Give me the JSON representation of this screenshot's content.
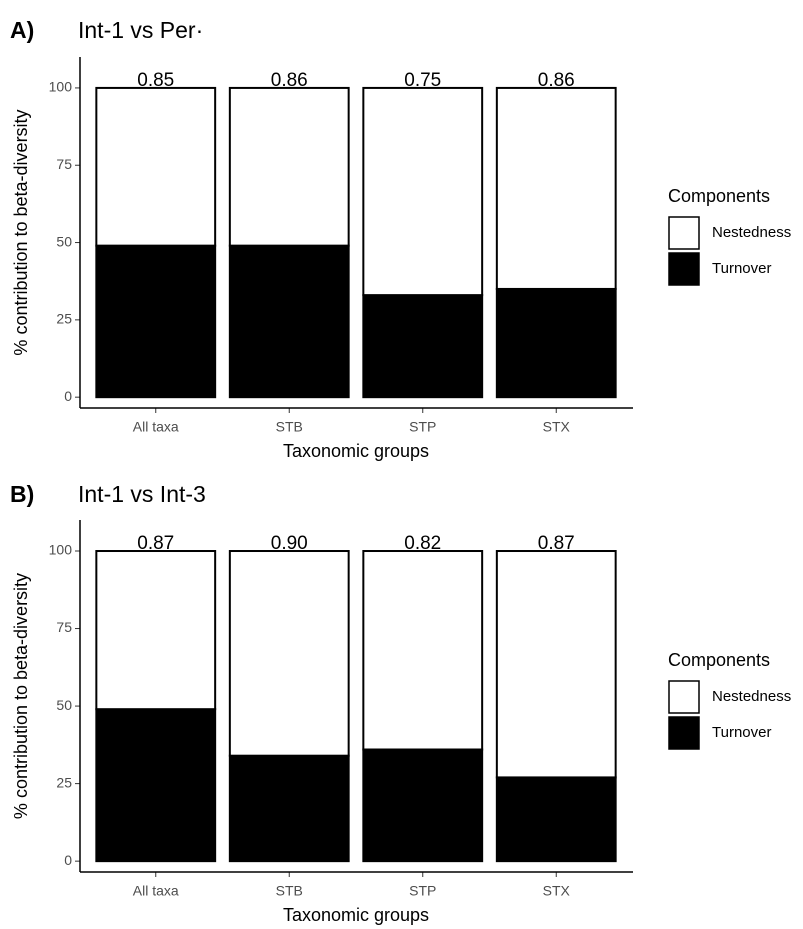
{
  "chart_data": [
    {
      "type": "bar",
      "stacked": true,
      "panel_label": "A)",
      "title": "Int-1 vs Per·",
      "x_label": "Taxonomic groups",
      "y_label": "% contribution to beta-diversity",
      "categories": [
        "All taxa",
        "STB",
        "STP",
        "STX"
      ],
      "series": [
        {
          "name": "Turnover",
          "color": "#000000",
          "values": [
            49,
            49,
            33,
            35
          ]
        },
        {
          "name": "Nestedness",
          "color": "#ffffff",
          "values": [
            51,
            51,
            67,
            65
          ]
        }
      ],
      "top_labels": [
        "0.85",
        "0.86",
        "0.75",
        "0.86"
      ],
      "ylim": [
        -3.5,
        110
      ],
      "yticks": [
        0,
        25,
        50,
        75,
        100
      ],
      "legend_title": "Components",
      "legend": "right"
    },
    {
      "type": "bar",
      "stacked": true,
      "panel_label": "B)",
      "title": "Int-1 vs Int-3",
      "x_label": "Taxonomic groups",
      "y_label": "% contribution to beta-diversity",
      "categories": [
        "All taxa",
        "STB",
        "STP",
        "STX"
      ],
      "series": [
        {
          "name": "Turnover",
          "color": "#000000",
          "values": [
            49,
            34,
            36,
            27
          ]
        },
        {
          "name": "Nestedness",
          "color": "#ffffff",
          "values": [
            51,
            66,
            64,
            73
          ]
        }
      ],
      "top_labels": [
        "0.87",
        "0.90",
        "0.82",
        "0.87"
      ],
      "ylim": [
        -3.5,
        110
      ],
      "yticks": [
        0,
        25,
        50,
        75,
        100
      ],
      "legend_title": "Components",
      "legend": "right"
    }
  ]
}
